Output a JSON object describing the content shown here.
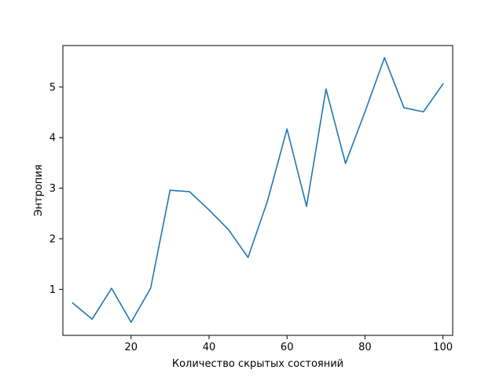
{
  "chart_data": {
    "type": "line",
    "title": "",
    "xlabel": "Количество скрытых состояний",
    "ylabel": "Энтропия",
    "xlim": [
      2.5,
      102.5
    ],
    "ylim": [
      0.09,
      5.82
    ],
    "xticks": [
      20,
      40,
      60,
      80,
      100
    ],
    "yticks": [
      1,
      2,
      3,
      4,
      5
    ],
    "grid": false,
    "series": [
      {
        "color": "#1f77b4",
        "x": [
          5,
          10,
          15,
          20,
          25,
          30,
          35,
          40,
          45,
          50,
          55,
          60,
          65,
          70,
          75,
          80,
          85,
          90,
          95,
          100
        ],
        "y": [
          0.73,
          0.41,
          1.02,
          0.35,
          1.02,
          2.96,
          2.93,
          2.57,
          2.18,
          1.63,
          2.75,
          4.17,
          2.64,
          4.96,
          3.49,
          4.51,
          5.58,
          4.59,
          4.51,
          5.06
        ]
      }
    ]
  }
}
